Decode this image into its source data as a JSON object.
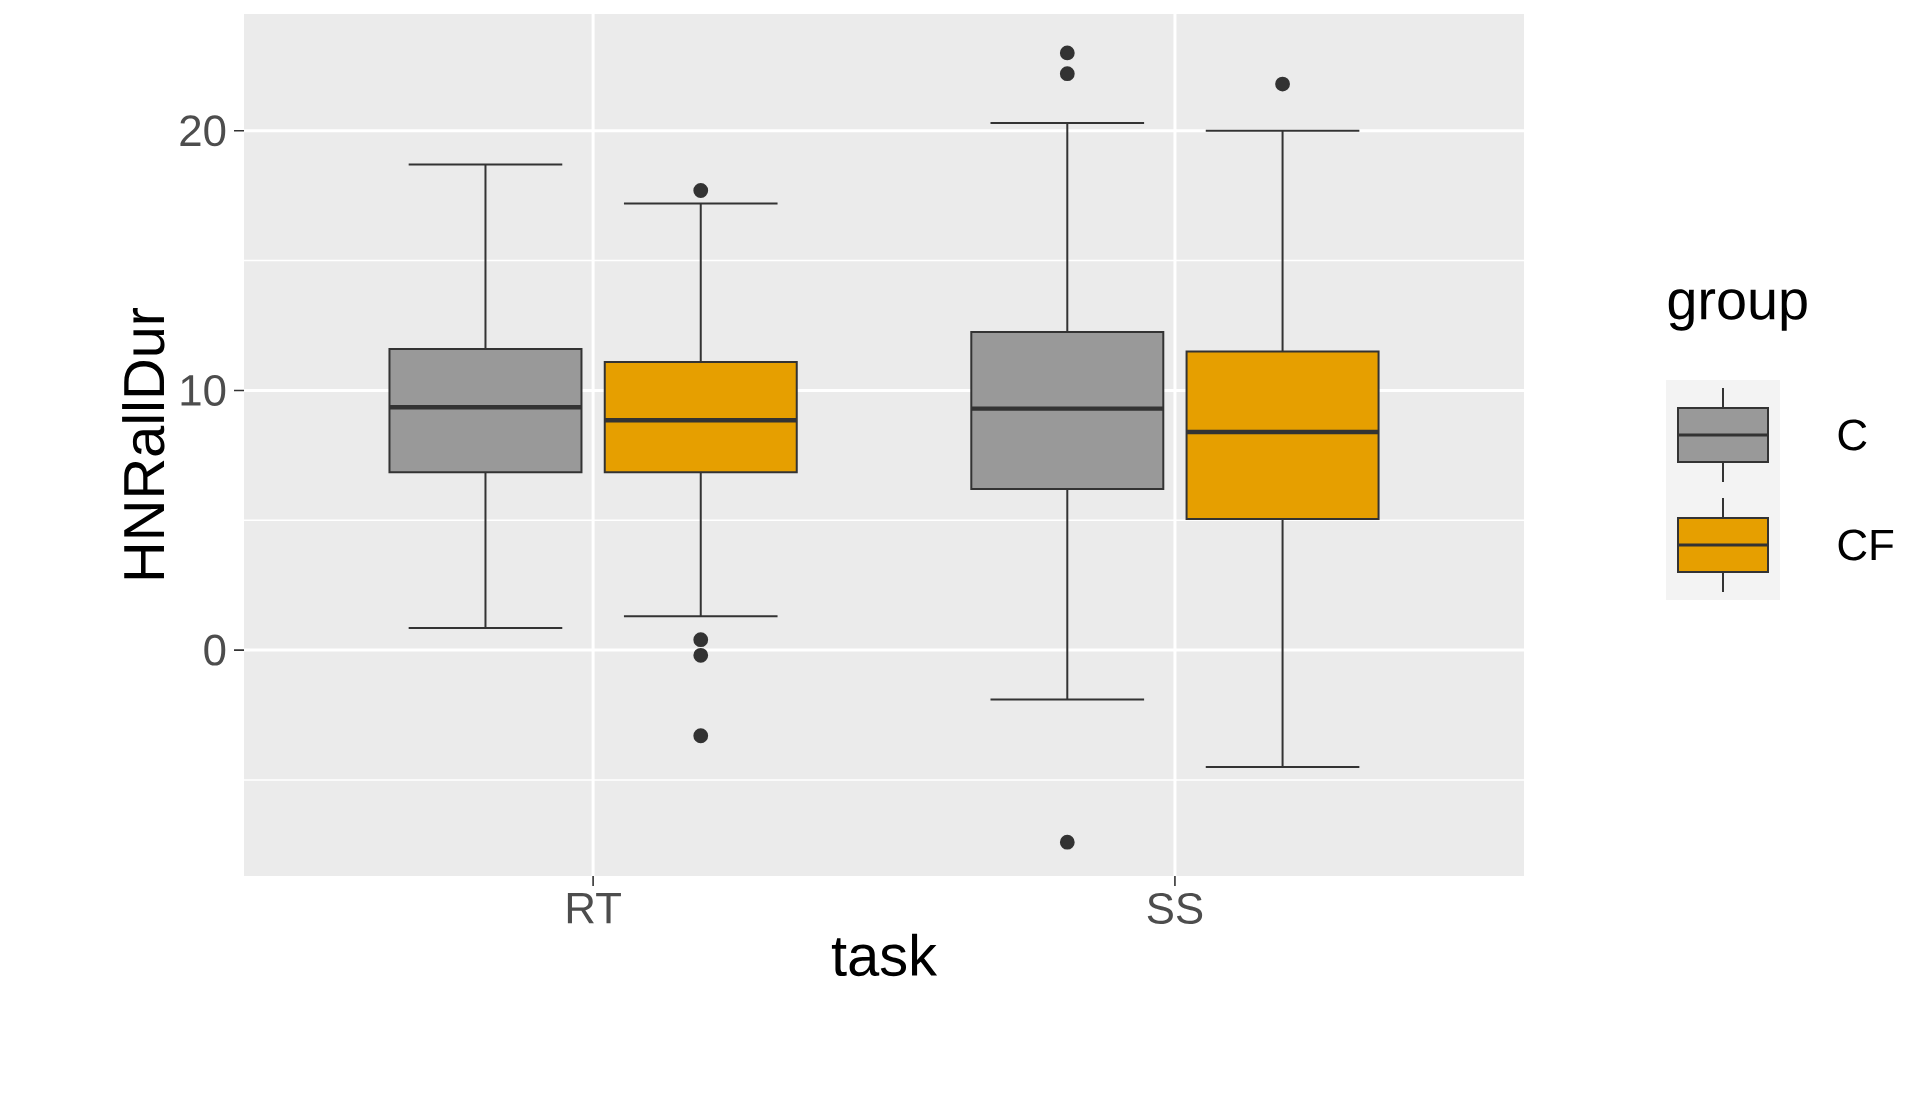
{
  "chart_data": {
    "type": "box",
    "xlabel": "task",
    "ylabel": "HNRallDur",
    "legend_title": "group",
    "categories": [
      "RT",
      "SS"
    ],
    "series": [
      {
        "name": "C",
        "color": "#999999",
        "boxes": [
          {
            "low": 0.85,
            "q1": 6.85,
            "median": 9.35,
            "q3": 11.6,
            "high": 18.7
          },
          {
            "low": -1.9,
            "q1": 6.2,
            "median": 9.3,
            "q3": 12.25,
            "high": 20.3,
            "outliers": [
              23.0,
              22.2,
              -7.4
            ]
          }
        ]
      },
      {
        "name": "CF",
        "color": "#e69f00",
        "boxes": [
          {
            "low": 1.3,
            "q1": 6.85,
            "median": 8.85,
            "q3": 11.1,
            "high": 17.2,
            "outliers": [
              17.7,
              0.4,
              -0.2,
              -3.3
            ]
          },
          {
            "low": -4.5,
            "q1": 5.05,
            "median": 8.4,
            "q3": 11.5,
            "high": 20.0,
            "outliers": [
              21.8
            ]
          }
        ]
      }
    ],
    "ylim": [
      -8.7,
      24.5
    ],
    "yticks": [
      0,
      10,
      20
    ],
    "grid": true,
    "legend": "right"
  }
}
